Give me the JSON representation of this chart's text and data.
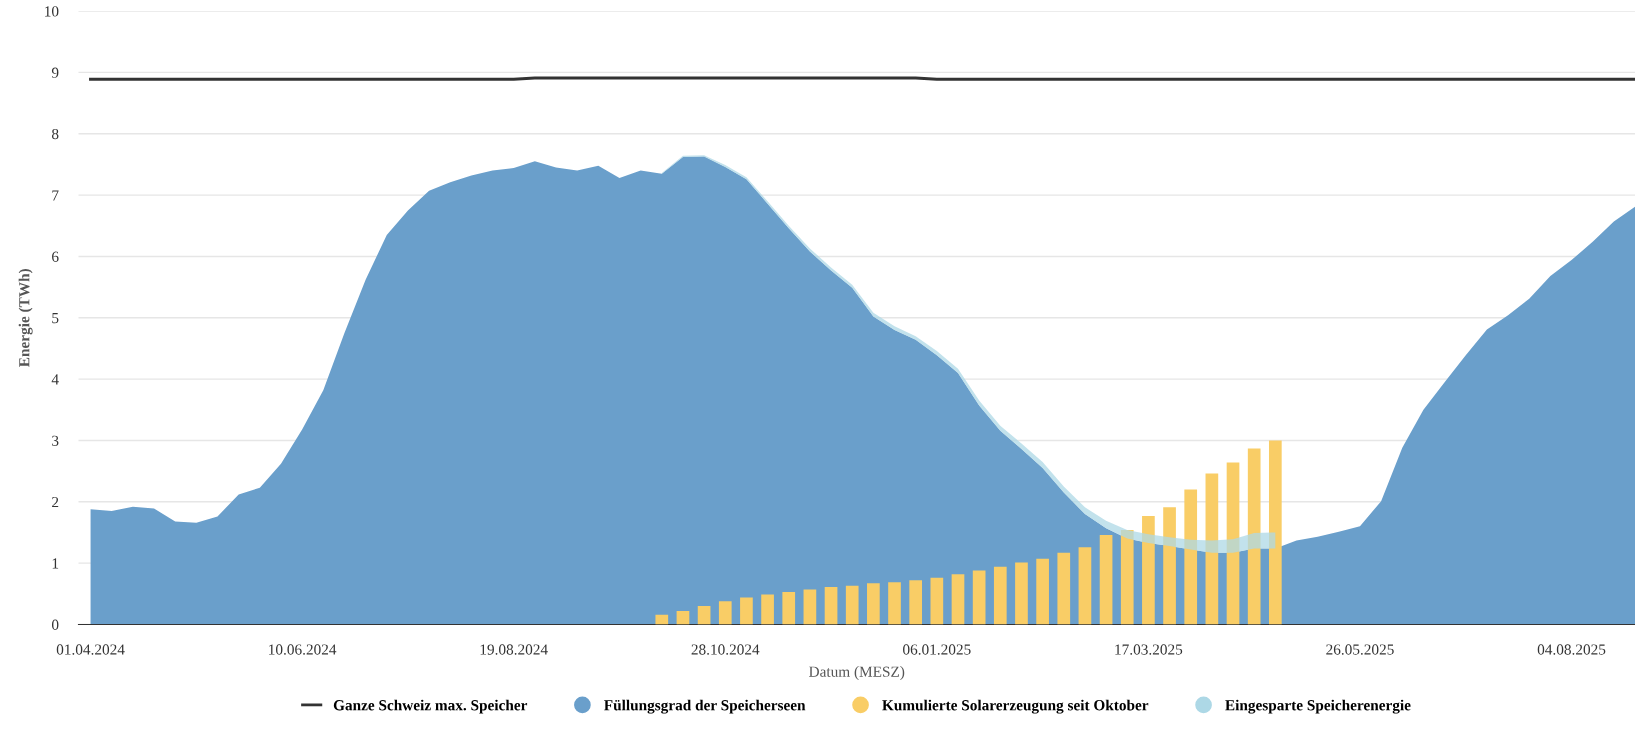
{
  "chart_data": {
    "type": "area",
    "xlabel": "Datum (MESZ)",
    "ylabel": "Energie (TWh)",
    "x": [
      "2024-04-01",
      "2024-04-08",
      "2024-04-15",
      "2024-04-22",
      "2024-04-29",
      "2024-05-06",
      "2024-05-13",
      "2024-05-20",
      "2024-05-27",
      "2024-06-03",
      "2024-06-10",
      "2024-06-17",
      "2024-06-24",
      "2024-07-01",
      "2024-07-08",
      "2024-07-15",
      "2024-07-22",
      "2024-07-29",
      "2024-08-05",
      "2024-08-12",
      "2024-08-19",
      "2024-08-26",
      "2024-09-02",
      "2024-09-09",
      "2024-09-16",
      "2024-09-23",
      "2024-09-30",
      "2024-10-07",
      "2024-10-14",
      "2024-10-21",
      "2024-10-28",
      "2024-11-04",
      "2024-11-11",
      "2024-11-18",
      "2024-11-25",
      "2024-12-02",
      "2024-12-09",
      "2024-12-16",
      "2024-12-23",
      "2024-12-30",
      "2025-01-06",
      "2025-01-13",
      "2025-01-20",
      "2025-01-27",
      "2025-02-03",
      "2025-02-10",
      "2025-02-17",
      "2025-02-24",
      "2025-03-03",
      "2025-03-10",
      "2025-03-17",
      "2025-03-24",
      "2025-03-31",
      "2025-04-07",
      "2025-04-14",
      "2025-04-21",
      "2025-04-28",
      "2025-05-05",
      "2025-05-12",
      "2025-05-19",
      "2025-05-26",
      "2025-06-02",
      "2025-06-09",
      "2025-06-16",
      "2025-06-23",
      "2025-06-30",
      "2025-07-07",
      "2025-07-14",
      "2025-07-21",
      "2025-07-28",
      "2025-08-04",
      "2025-08-11",
      "2025-08-18",
      "2025-08-25"
    ],
    "stacked": true,
    "series": [
      {
        "name": "Ganze Schweiz max. Speicher",
        "type": "line",
        "color": "#333333",
        "values": [
          8.89,
          8.89,
          8.89,
          8.89,
          8.89,
          8.89,
          8.89,
          8.89,
          8.89,
          8.89,
          8.89,
          8.89,
          8.89,
          8.89,
          8.89,
          8.89,
          8.89,
          8.89,
          8.89,
          8.89,
          8.89,
          8.91,
          8.91,
          8.91,
          8.91,
          8.91,
          8.91,
          8.91,
          8.91,
          8.91,
          8.91,
          8.91,
          8.91,
          8.91,
          8.91,
          8.91,
          8.91,
          8.91,
          8.91,
          8.91,
          8.89,
          8.89,
          8.89,
          8.89,
          8.89,
          8.89,
          8.89,
          8.89,
          8.89,
          8.89,
          8.89,
          8.89,
          8.89,
          8.89,
          8.89,
          8.89,
          8.89,
          8.89,
          8.89,
          8.89,
          8.89,
          8.89,
          8.89,
          8.89,
          8.89,
          8.89,
          8.89,
          8.89,
          8.89,
          8.89,
          8.89,
          8.89,
          8.89,
          8.89
        ]
      },
      {
        "name": "Füllungsgrad der Speicherseen",
        "color": "#6a9fcb",
        "values": [
          1.88,
          1.85,
          1.92,
          1.89,
          1.68,
          1.66,
          1.76,
          2.12,
          2.23,
          2.62,
          3.18,
          3.82,
          4.75,
          5.62,
          6.35,
          6.75,
          7.07,
          7.21,
          7.32,
          7.4,
          7.44,
          7.55,
          7.45,
          7.4,
          7.48,
          7.28,
          7.4,
          7.35,
          7.62,
          7.63,
          7.46,
          7.26,
          6.86,
          6.46,
          6.08,
          5.77,
          5.49,
          5.02,
          4.8,
          4.64,
          4.39,
          4.1,
          3.57,
          3.16,
          2.86,
          2.55,
          2.15,
          1.8,
          1.57,
          1.4,
          1.33,
          1.28,
          1.22,
          1.17,
          1.17,
          1.24,
          1.24,
          1.37,
          1.43,
          1.51,
          1.6,
          2.01,
          2.88,
          3.5,
          3.95,
          4.39,
          4.81,
          5.04,
          5.31,
          5.68,
          5.94,
          6.24,
          6.57,
          6.81
        ]
      },
      {
        "name": "Kumulierte Solarerzeugung seit Oktober",
        "type": "bar",
        "color": "#f9cd66",
        "values": [
          null,
          null,
          null,
          null,
          null,
          null,
          null,
          null,
          null,
          null,
          null,
          null,
          null,
          null,
          null,
          null,
          null,
          null,
          null,
          null,
          null,
          null,
          null,
          null,
          null,
          null,
          null,
          0.16,
          0.22,
          0.3,
          0.38,
          0.44,
          0.49,
          0.53,
          0.57,
          0.61,
          0.63,
          0.67,
          0.69,
          0.72,
          0.76,
          0.82,
          0.88,
          0.94,
          1.01,
          1.07,
          1.17,
          1.26,
          1.46,
          1.54,
          1.77,
          1.91,
          2.2,
          2.46,
          2.64,
          2.87,
          3.0,
          null,
          null,
          null,
          null,
          null,
          null,
          null,
          null,
          null,
          null,
          null,
          null,
          null,
          null,
          null,
          null,
          null
        ]
      },
      {
        "name": "Eingesparte Speicherenergie",
        "color": "#add8e6",
        "values": [
          null,
          null,
          null,
          null,
          null,
          null,
          null,
          null,
          null,
          null,
          null,
          null,
          null,
          null,
          null,
          null,
          null,
          null,
          null,
          null,
          null,
          null,
          null,
          null,
          null,
          null,
          null,
          0.01,
          0.02,
          0.02,
          0.03,
          0.03,
          0.04,
          0.04,
          0.05,
          0.05,
          0.05,
          0.06,
          0.06,
          0.06,
          0.07,
          0.07,
          0.08,
          0.08,
          0.09,
          0.1,
          0.1,
          0.11,
          0.12,
          0.14,
          0.14,
          0.14,
          0.16,
          0.2,
          0.22,
          0.25,
          0.26,
          null,
          null,
          null,
          null,
          null,
          null,
          null,
          null,
          null,
          null,
          null,
          null,
          null,
          null,
          null,
          null,
          null
        ]
      }
    ],
    "xlim": [
      "2024-03-28",
      "2025-08-25"
    ],
    "xticks": [
      {
        "value": "2024-04-01",
        "label": "01.04.2024"
      },
      {
        "value": "2024-06-10",
        "label": "10.06.2024"
      },
      {
        "value": "2024-08-19",
        "label": "19.08.2024"
      },
      {
        "value": "2024-10-28",
        "label": "28.10.2024"
      },
      {
        "value": "2025-01-06",
        "label": "06.01.2025"
      },
      {
        "value": "2025-03-17",
        "label": "17.03.2025"
      },
      {
        "value": "2025-05-26",
        "label": "26.05.2025"
      },
      {
        "value": "2025-08-04",
        "label": "04.08.2025"
      }
    ],
    "ylim": [
      0,
      10
    ],
    "yticks": [
      0,
      1,
      2,
      3,
      4,
      5,
      6,
      7,
      8,
      9,
      10
    ],
    "grid": "y",
    "legend": "bottom"
  }
}
